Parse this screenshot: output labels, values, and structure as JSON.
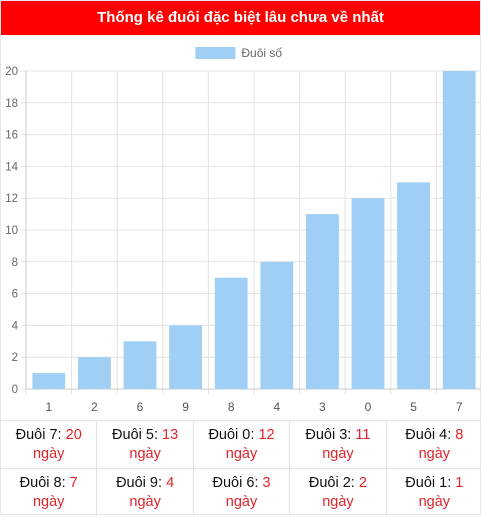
{
  "header": {
    "title": "Thống kê đuôi đặc biệt lâu chưa về nhất"
  },
  "colors": {
    "header_bg": "#ff0000",
    "bar": "#9fcff4",
    "accent_text": "#e0242c"
  },
  "chart_data": {
    "type": "bar",
    "title": "",
    "legend": {
      "position": "top",
      "label": "Đuôi số"
    },
    "categories": [
      "1",
      "2",
      "6",
      "9",
      "8",
      "4",
      "3",
      "0",
      "5",
      "7"
    ],
    "series": [
      {
        "name": "Đuôi số",
        "values": [
          1,
          2,
          3,
          4,
          7,
          8,
          11,
          12,
          13,
          20
        ]
      }
    ],
    "ylim": [
      0,
      20
    ],
    "yticks": [
      0,
      2,
      4,
      6,
      8,
      10,
      12,
      14,
      16,
      18,
      20
    ],
    "grid": true
  },
  "stats": {
    "unit": "ngày",
    "items": [
      {
        "label": "Đuôi 7:",
        "value": "20"
      },
      {
        "label": "Đuôi 5:",
        "value": "13"
      },
      {
        "label": "Đuôi 0:",
        "value": "12"
      },
      {
        "label": "Đuôi 3:",
        "value": "11"
      },
      {
        "label": "Đuôi 4:",
        "value": "8"
      },
      {
        "label": "Đuôi 8:",
        "value": "7"
      },
      {
        "label": "Đuôi 9:",
        "value": "4"
      },
      {
        "label": "Đuôi 6:",
        "value": "3"
      },
      {
        "label": "Đuôi 2:",
        "value": "2"
      },
      {
        "label": "Đuôi 1:",
        "value": "1"
      }
    ]
  }
}
